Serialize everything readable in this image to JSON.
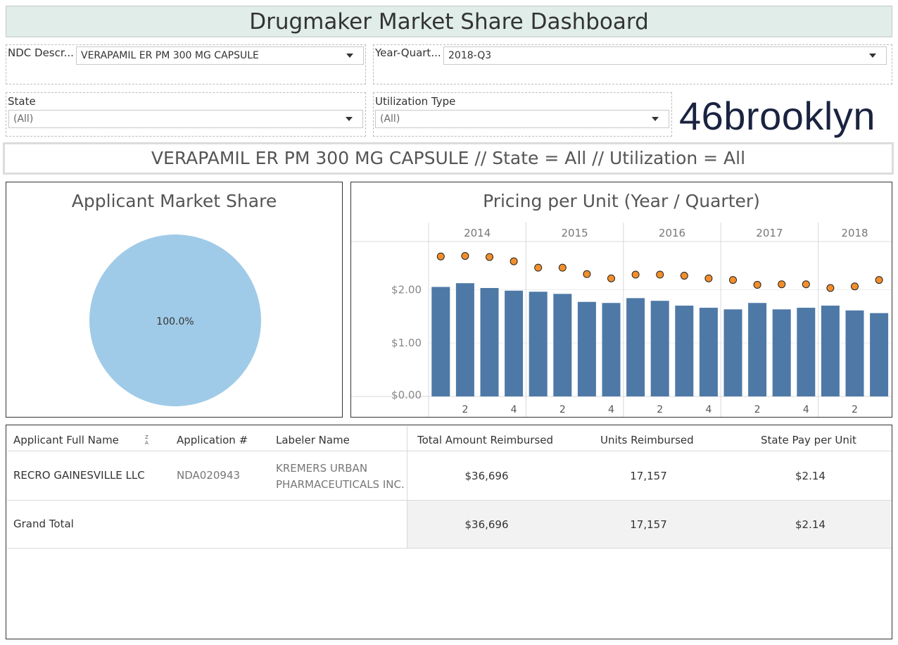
{
  "dashboard": {
    "title": "Drugmaker Market Share Dashboard",
    "subtitle": "VERAPAMIL ER PM 300 MG CAPSULE // State = All // Utilization = All",
    "logo_text": "46brooklyn"
  },
  "filters": {
    "ndc": {
      "label": "NDC Descr...",
      "value": "VERAPAMIL ER PM 300 MG CAPSULE"
    },
    "year_quarter": {
      "label": "Year-Quart...",
      "value": "2018-Q3"
    },
    "state": {
      "label": "State",
      "value": "(All)"
    },
    "utilization": {
      "label": "Utilization Type",
      "value": "(All)"
    }
  },
  "market_share": {
    "title": "Applicant Market Share",
    "chart_data": {
      "type": "pie",
      "labels": [
        "100.0%"
      ],
      "values": [
        100
      ],
      "colors": [
        "#a0cbe8"
      ]
    }
  },
  "pricing": {
    "title": "Pricing per Unit (Year / Quarter)",
    "chart_data": {
      "type": "bar",
      "years": [
        "2014",
        "2015",
        "2016",
        "2017",
        "2018"
      ],
      "quarter_ticks": [
        "2",
        "4",
        "2",
        "4",
        "2",
        "4",
        "2",
        "4",
        "2"
      ],
      "categories": [
        "2014-Q1",
        "2014-Q2",
        "2014-Q3",
        "2014-Q4",
        "2015-Q1",
        "2015-Q2",
        "2015-Q3",
        "2015-Q4",
        "2016-Q1",
        "2016-Q2",
        "2016-Q3",
        "2016-Q4",
        "2017-Q1",
        "2017-Q2",
        "2017-Q3",
        "2017-Q4",
        "2018-Q1",
        "2018-Q2",
        "2018-Q3"
      ],
      "series": [
        {
          "values": [
            2.05,
            2.12,
            2.03,
            1.98,
            1.96,
            1.92,
            1.77,
            1.75,
            1.84,
            1.79,
            1.7,
            1.66,
            1.63,
            1.75,
            1.63,
            1.66,
            1.7,
            1.61,
            1.56
          ],
          "color": "#4e79a7"
        },
        {
          "values": [
            2.62,
            2.63,
            2.61,
            2.53,
            2.41,
            2.41,
            2.29,
            2.21,
            2.28,
            2.28,
            2.26,
            2.21,
            2.18,
            2.09,
            2.1,
            2.1,
            2.03,
            2.06,
            2.18
          ],
          "color": "#f28e2b"
        }
      ],
      "yticks": [
        "$0.00",
        "$1.00",
        "$2.00"
      ],
      "ylim": [
        0,
        2.9
      ]
    }
  },
  "table": {
    "headers": [
      "Applicant Full Name",
      "Application #",
      "Labeler Name",
      "Total Amount Reimbursed",
      "Units Reimbursed",
      "State Pay per Unit"
    ],
    "row": {
      "applicant": "RECRO GAINESVILLE LLC",
      "application": "NDA020943",
      "labeler_line1": "KREMERS URBAN",
      "labeler_line2": "PHARMACEUTICALS INC.",
      "total": "$36,696",
      "units": "17,157",
      "per_unit": "$2.14"
    },
    "grand_total": {
      "label": "Grand Total",
      "total": "$36,696",
      "units": "17,157",
      "per_unit": "$2.14"
    }
  }
}
